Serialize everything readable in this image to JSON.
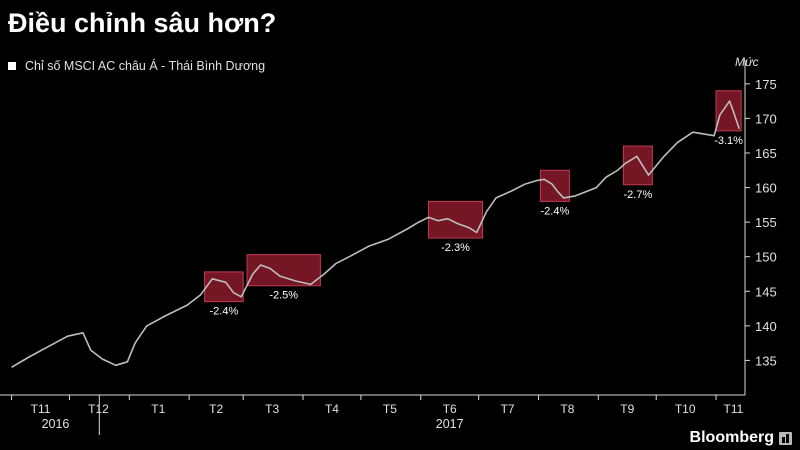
{
  "title": "Điều chỉnh sâu hơn?",
  "unit_label": "Mức",
  "brand": "Bloomberg",
  "colors": {
    "background": "#000000",
    "line": "#bdbdbd",
    "axis": "#d9d9d9",
    "highlight_fill": "#8a1a2a",
    "highlight_stroke": "#c23a52"
  },
  "chart_data": {
    "type": "line",
    "title": "Điều chỉnh sâu hơn?",
    "ylabel": "Mức",
    "ylim": [
      130,
      177
    ],
    "yticks": [
      135,
      140,
      145,
      150,
      155,
      160,
      165,
      170,
      175
    ],
    "x_axis": {
      "months": [
        "T11",
        "T12",
        "T1",
        "T2",
        "T3",
        "T4",
        "T5",
        "T6",
        "T7",
        "T8",
        "T9",
        "T10",
        "T11"
      ],
      "years": [
        "2016",
        "2017"
      ]
    },
    "series": [
      {
        "name": "Chỉ số MSCI AC châu Á - Thái Bình Dương",
        "x": [
          "2016-11-01",
          "2016-11-10",
          "2016-11-20",
          "2016-11-30",
          "2016-12-08",
          "2016-12-12",
          "2016-12-18",
          "2016-12-25",
          "2016-12-31",
          "2017-01-04",
          "2017-01-10",
          "2017-01-20",
          "2017-01-31",
          "2017-02-07",
          "2017-02-13",
          "2017-02-20",
          "2017-02-24",
          "2017-02-28",
          "2017-03-06",
          "2017-03-10",
          "2017-03-15",
          "2017-03-20",
          "2017-03-28",
          "2017-04-05",
          "2017-04-12",
          "2017-04-18",
          "2017-04-25",
          "2017-05-05",
          "2017-05-15",
          "2017-05-25",
          "2017-05-31",
          "2017-06-05",
          "2017-06-10",
          "2017-06-15",
          "2017-06-20",
          "2017-06-26",
          "2017-06-30",
          "2017-07-05",
          "2017-07-10",
          "2017-07-18",
          "2017-07-25",
          "2017-07-31",
          "2017-08-04",
          "2017-08-08",
          "2017-08-11",
          "2017-08-14",
          "2017-08-20",
          "2017-08-31",
          "2017-09-05",
          "2017-09-11",
          "2017-09-15",
          "2017-09-21",
          "2017-09-27",
          "2017-10-05",
          "2017-10-12",
          "2017-10-20",
          "2017-10-31",
          "2017-11-03",
          "2017-11-08",
          "2017-11-10",
          "2017-11-13"
        ],
        "values": [
          134,
          135.5,
          137,
          138.5,
          139,
          136.5,
          135.2,
          134.3,
          134.8,
          137.5,
          140,
          141.5,
          143,
          144.5,
          146.8,
          146.3,
          144.8,
          144.2,
          147.5,
          148.8,
          148.3,
          147.2,
          146.5,
          146,
          147.5,
          149,
          150,
          151.5,
          152.5,
          154,
          155,
          155.7,
          155.2,
          155.5,
          154.8,
          154.2,
          153.5,
          156.5,
          158.5,
          159.5,
          160.5,
          161,
          161.2,
          160.5,
          159.4,
          158.5,
          158.8,
          160,
          161.5,
          162.5,
          163.5,
          164.5,
          161.8,
          164.5,
          166.5,
          168,
          167.5,
          170.5,
          172.5,
          171,
          168.5
        ]
      }
    ],
    "highlights": [
      {
        "label": "-2.4%",
        "x_start": "2017-02-09",
        "x_end": "2017-03-01",
        "y_low": 143.5,
        "y_high": 147.8
      },
      {
        "label": "-2.5%",
        "x_start": "2017-03-03",
        "x_end": "2017-04-10",
        "y_low": 145.8,
        "y_high": 150.3
      },
      {
        "label": "-2.3%",
        "x_start": "2017-06-05",
        "x_end": "2017-07-03",
        "y_low": 152.7,
        "y_high": 158.0
      },
      {
        "label": "-2.4%",
        "x_start": "2017-08-02",
        "x_end": "2017-08-17",
        "y_low": 158.0,
        "y_high": 162.5
      },
      {
        "label": "-2.7%",
        "x_start": "2017-09-14",
        "x_end": "2017-09-29",
        "y_low": 160.4,
        "y_high": 166.0
      },
      {
        "label": "-3.1%",
        "x_start": "2017-11-01",
        "x_end": "2017-11-14",
        "y_low": 168.2,
        "y_high": 174.0
      }
    ]
  }
}
